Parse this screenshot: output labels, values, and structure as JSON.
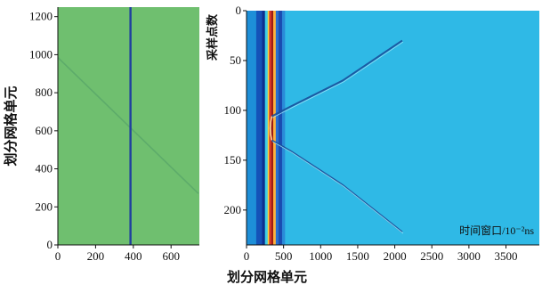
{
  "colors": {
    "left_bg": "#6fbf6f",
    "left_line": "#1f3f9f",
    "right_bg": "#2fb9e6",
    "trace": "#3aa0dc"
  },
  "chart_data": [
    {
      "type": "line",
      "xlabel": "划分网格单元",
      "ylabel": "划分网格单元",
      "xlim": [
        0,
        750
      ],
      "ylim": [
        0,
        1250
      ],
      "x_ticks": [
        "0",
        "200",
        "400",
        "600"
      ],
      "y_ticks": [
        "0",
        "200",
        "400",
        "600",
        "800",
        "1000",
        "1200"
      ],
      "series": [
        {
          "x": [
            385,
            385
          ],
          "y": [
            0,
            1250
          ]
        },
        {
          "x": [
            0,
            745
          ],
          "y": [
            985,
            270
          ]
        }
      ]
    },
    {
      "type": "heatmap",
      "xlabel": "划分网格单元",
      "ylabel": "采样点数",
      "annotation": "时间窗口/10⁻²ns",
      "xlim": [
        0,
        3950
      ],
      "ylim": [
        0,
        235
      ],
      "y_reversed": true,
      "x_ticks": [
        "0",
        "500",
        "1000",
        "1500",
        "2000",
        "2500",
        "3000",
        "3500"
      ],
      "y_ticks": [
        "0",
        "50",
        "100",
        "150",
        "200"
      ],
      "series": [
        {
          "x": [
            340,
            600,
            1300,
            2100
          ],
          "y": [
            106,
            96,
            70,
            30
          ]
        },
        {
          "x": [
            340,
            600,
            1300,
            2100
          ],
          "y": [
            130,
            141,
            175,
            222
          ]
        }
      ]
    }
  ]
}
